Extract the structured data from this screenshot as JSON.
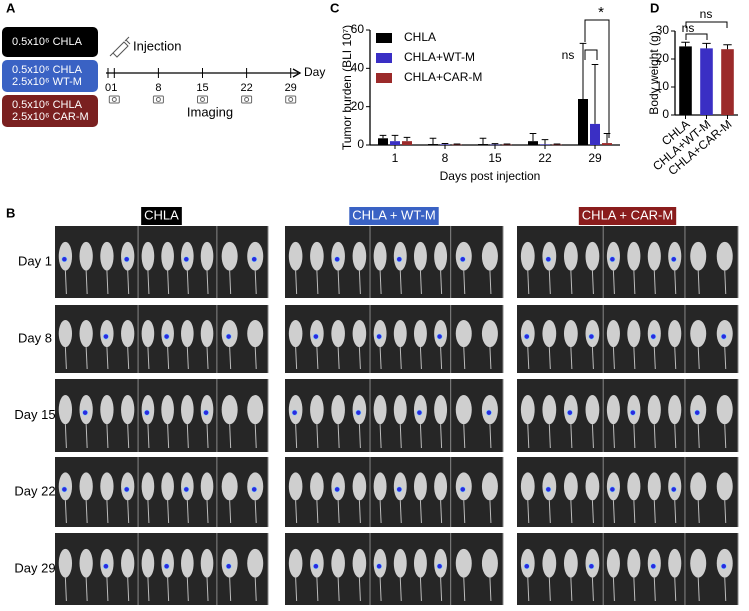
{
  "panel_a": {
    "label": "A",
    "groups": [
      {
        "lines": [
          "0.5x10⁶ CHLA"
        ]
      },
      {
        "lines": [
          "0.5x10⁶ CHLA",
          "2.5x10⁶ WT-M"
        ]
      },
      {
        "lines": [
          "0.5x10⁶ CHLA",
          "2.5x10⁶ CAR-M"
        ]
      }
    ],
    "injection": "Injection",
    "days": [
      0,
      1,
      8,
      15,
      22,
      29
    ],
    "axis_label": "Day",
    "imaging": "Imaging"
  },
  "chart_data": [
    {
      "type": "bar",
      "label": "C",
      "y_label": "Tumor burden (BLI 10⁷)",
      "x_label": "Days post  injection",
      "categories": [
        "1",
        "8",
        "15",
        "22",
        "29"
      ],
      "series": [
        {
          "name": "CHLA",
          "color": "#000000",
          "values": [
            3.5,
            0.5,
            0.5,
            2,
            24
          ],
          "errors": [
            1.5,
            3,
            3,
            4,
            29
          ]
        },
        {
          "name": "CHLA+WT-M",
          "color": "#3a2fc4",
          "values": [
            2,
            0.3,
            0.2,
            0.3,
            11
          ],
          "errors": [
            3,
            0.5,
            0.5,
            2.5,
            31
          ]
        },
        {
          "name": "CHLA+CAR-M",
          "color": "#9b2a2a",
          "values": [
            2,
            0.2,
            0.2,
            0.2,
            1
          ],
          "errors": [
            2,
            0.3,
            0.3,
            0.3,
            5
          ]
        }
      ],
      "ylim": [
        0,
        60
      ],
      "yticks": [
        0,
        20,
        40,
        60
      ],
      "annotations": [
        "ns",
        "*"
      ]
    },
    {
      "type": "bar",
      "label": "D",
      "y_label": "Body weight (g)",
      "categories": [
        "CHLA",
        "CHLA+WT-M",
        "CHLA+CAR-M"
      ],
      "values": [
        24.5,
        23.8,
        23.5
      ],
      "errors": [
        1.5,
        1.8,
        1.6
      ],
      "colors": [
        "#000000",
        "#3a2fc4",
        "#9b2a2a"
      ],
      "ylim": [
        0,
        30
      ],
      "yticks": [
        0,
        10,
        20,
        30
      ],
      "annotations": [
        "ns",
        "ns"
      ]
    }
  ],
  "panel_b": {
    "label": "B",
    "groups": [
      "CHLA",
      "CHLA + WT-M",
      "CHLA + CAR-M"
    ],
    "rows": [
      "Day 1",
      "Day 8",
      "Day 15",
      "Day 22",
      "Day 29"
    ]
  }
}
